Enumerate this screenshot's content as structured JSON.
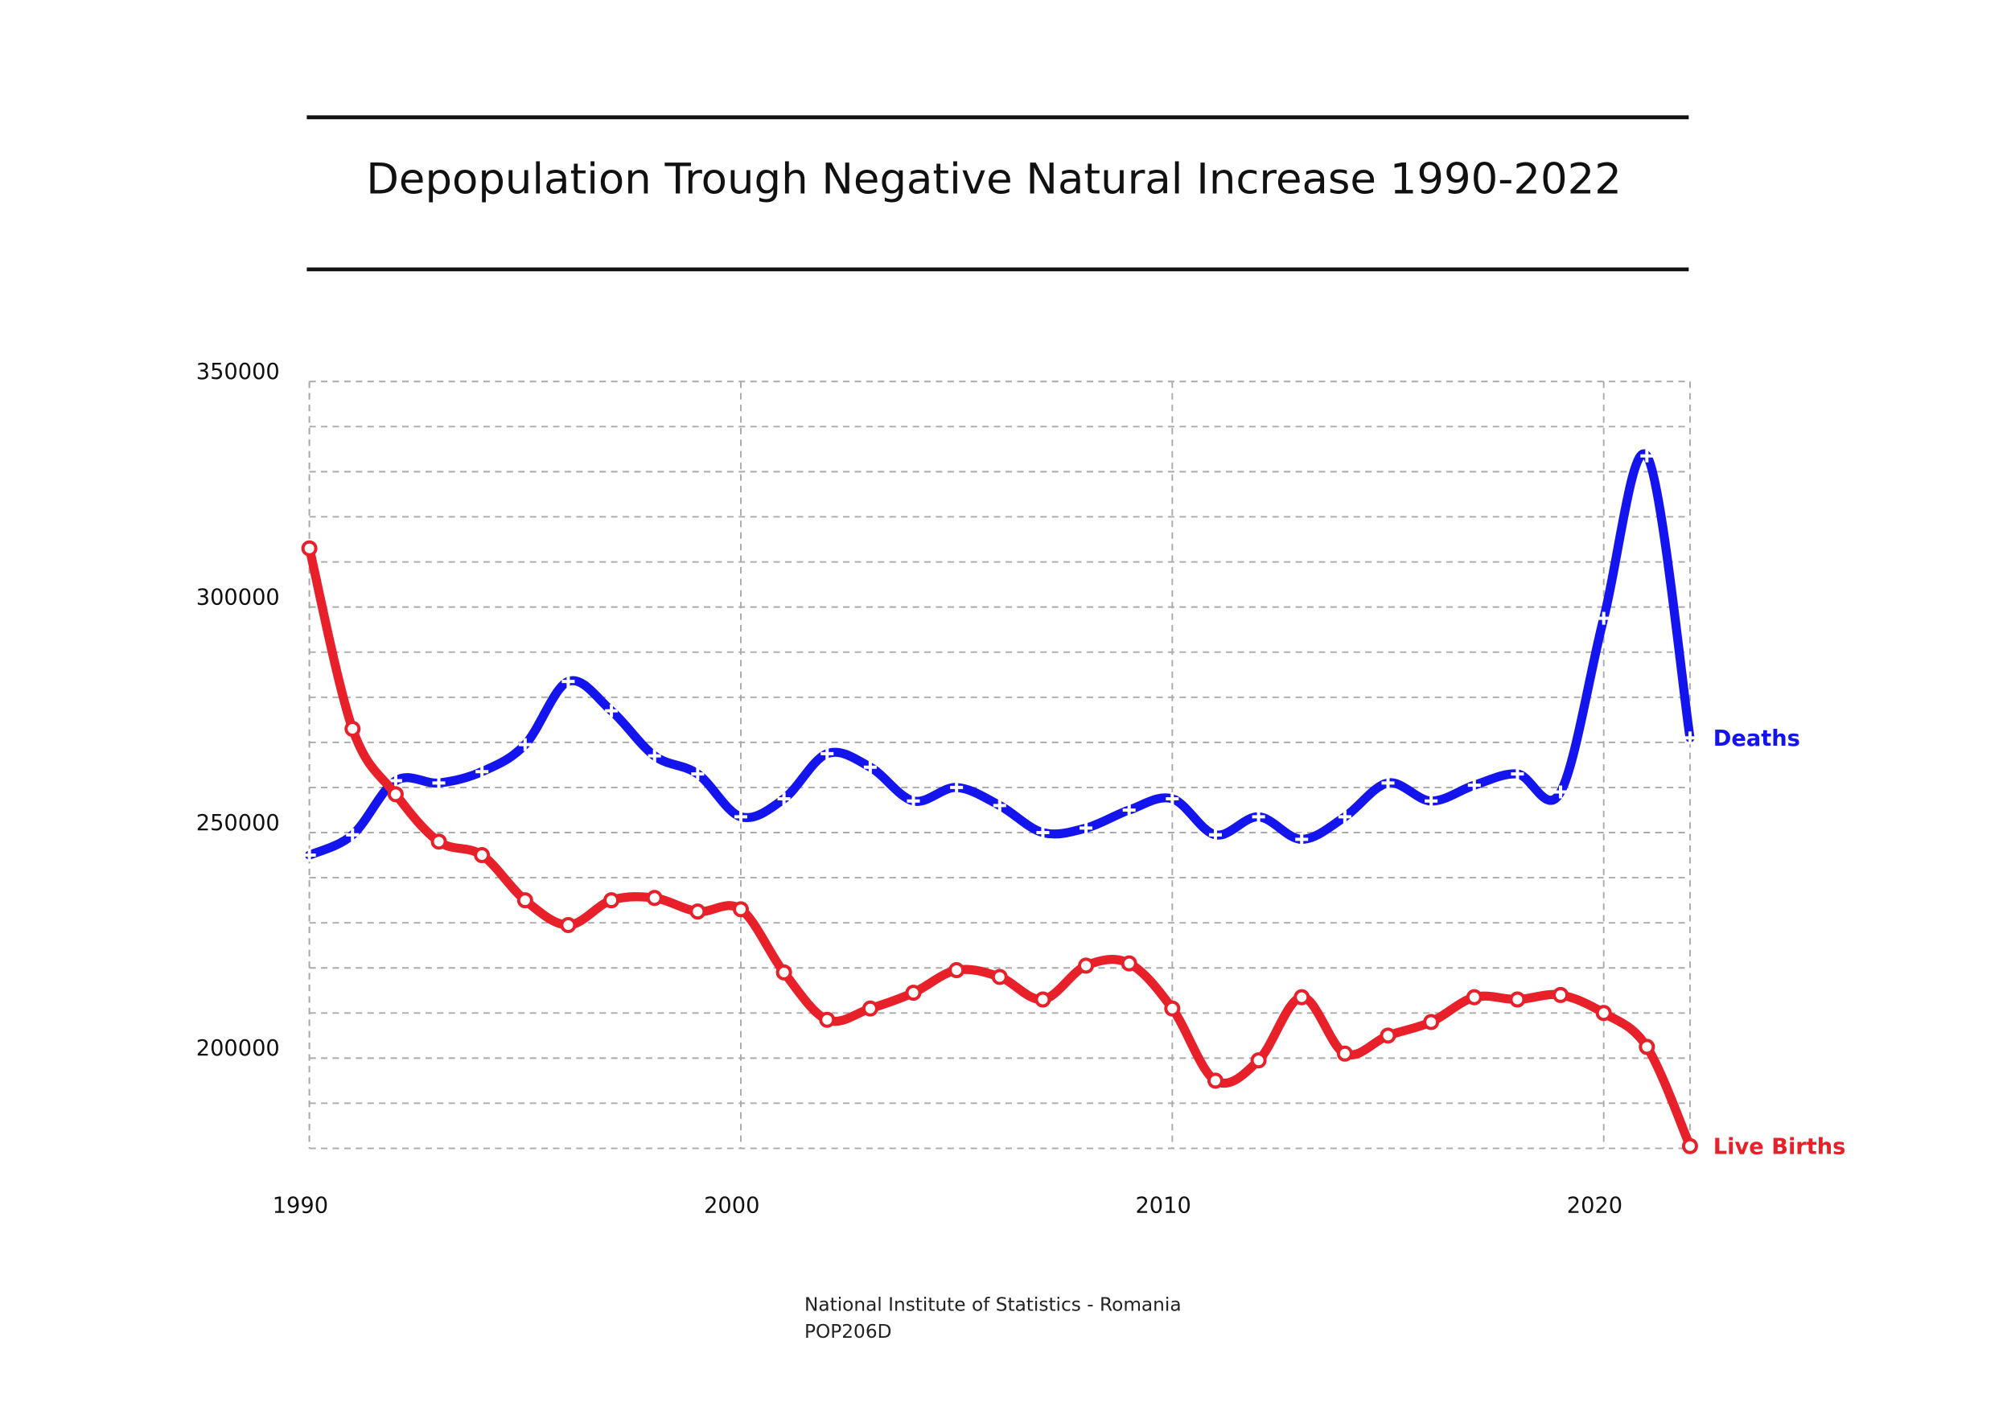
{
  "chart_data": {
    "type": "line",
    "title": "Depopulation Trough Negative Natural Increase 1990-2022",
    "source": [
      "National Institute of Statistics - Romania",
      "POP206D"
    ],
    "x": [
      1990,
      1991,
      1992,
      1993,
      1994,
      1995,
      1996,
      1997,
      1998,
      1999,
      2000,
      2001,
      2002,
      2003,
      2004,
      2005,
      2006,
      2007,
      2008,
      2009,
      2010,
      2011,
      2012,
      2013,
      2014,
      2015,
      2016,
      2017,
      2018,
      2019,
      2020,
      2021,
      2022
    ],
    "series": [
      {
        "name": "Deaths",
        "color": "#1414ee",
        "marker": "plus",
        "values": [
          245000,
          249500,
          261500,
          261000,
          263500,
          269500,
          283500,
          277000,
          267000,
          263000,
          253500,
          257500,
          267500,
          264500,
          257000,
          260000,
          256000,
          250000,
          251000,
          255000,
          257500,
          249500,
          253500,
          248500,
          253500,
          261000,
          257000,
          260500,
          263000,
          259000,
          297500,
          333500,
          271000
        ]
      },
      {
        "name": "Live Births",
        "color": "#e8202a",
        "marker": "circle",
        "values": [
          313000,
          273000,
          258500,
          248000,
          245000,
          235000,
          229500,
          235000,
          235500,
          232500,
          233000,
          219000,
          208500,
          211000,
          214500,
          219500,
          218000,
          213000,
          220500,
          221000,
          211000,
          195000,
          199500,
          213500,
          201000,
          205000,
          208000,
          213500,
          213000,
          214000,
          210000,
          202500,
          180500
        ]
      }
    ],
    "xlim": [
      1990,
      2022
    ],
    "xticks": [
      1990,
      2000,
      2010,
      2020
    ],
    "ylim": [
      180000,
      350000
    ],
    "yticks": [
      200000,
      250000,
      300000,
      350000
    ],
    "minor_yticks": [
      180000,
      190000,
      210000,
      220000,
      230000,
      240000,
      260000,
      270000,
      280000,
      290000,
      310000,
      320000,
      330000,
      340000
    ],
    "grid": true
  }
}
